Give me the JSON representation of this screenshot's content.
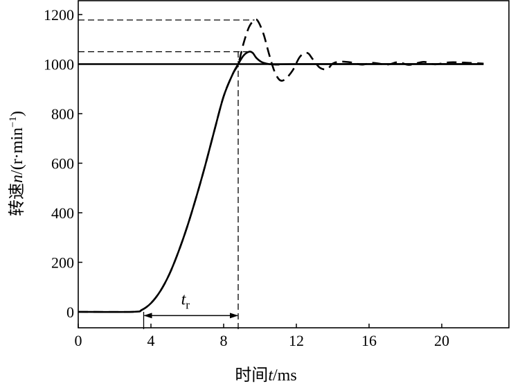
{
  "chart_data": {
    "type": "line",
    "title": "",
    "xlabel": {
      "prefix": "时间",
      "var": "t",
      "suffix": "/ms"
    },
    "ylabel": {
      "prefix": "转速",
      "var": "n",
      "mid": "/(r·min",
      "sup": "−1",
      "suffix": ")"
    },
    "xlim": [
      0,
      22.3
    ],
    "ylim": [
      -70,
      1230
    ],
    "xticks": [
      0,
      4,
      8,
      12,
      16,
      20
    ],
    "yticks": [
      0,
      200,
      400,
      600,
      800,
      1000,
      1200
    ],
    "grid": false,
    "legend": "none",
    "series": [
      {
        "style": "solid",
        "x": [
          0,
          3,
          3.5,
          4,
          4.5,
          5,
          5.5,
          6,
          6.5,
          7,
          7.5,
          8,
          8.5,
          8.8,
          9.1,
          9.4,
          9.6,
          9.8,
          10.1,
          10.5,
          11,
          12,
          22.3
        ],
        "y": [
          0,
          0,
          8,
          35,
          82,
          150,
          240,
          345,
          465,
          595,
          735,
          870,
          960,
          1000,
          1035,
          1050,
          1045,
          1025,
          1008,
          1000,
          998,
          1000,
          1000
        ]
      },
      {
        "style": "dashed",
        "x": [
          0,
          3,
          3.5,
          4,
          4.5,
          5,
          5.5,
          6,
          6.5,
          7,
          7.5,
          8,
          8.5,
          8.8,
          9.1,
          9.4,
          9.7,
          9.9,
          10.2,
          10.5,
          10.8,
          11.1,
          11.4,
          11.8,
          12.2,
          12.6,
          12.9,
          13.3,
          13.7,
          14,
          14.4,
          15,
          15.6,
          16.2,
          17,
          17.6,
          18.2,
          19,
          19.6,
          20.4,
          21.2,
          22.3
        ],
        "y": [
          0,
          0,
          8,
          35,
          82,
          150,
          240,
          345,
          465,
          595,
          735,
          870,
          960,
          1000,
          1085,
          1150,
          1178,
          1172,
          1120,
          1040,
          970,
          935,
          940,
          975,
          1030,
          1045,
          1020,
          985,
          980,
          1002,
          1010,
          1007,
          998,
          1005,
          998,
          1008,
          997,
          1009,
          999,
          1007,
          1006,
          1002
        ]
      }
    ],
    "reference_lines": [
      {
        "axis": "y",
        "value": 1000,
        "style": "solid",
        "x_range": [
          0,
          22.3
        ]
      },
      {
        "axis": "y",
        "value": 1050,
        "style": "dashed",
        "x_range": [
          0,
          9.4
        ]
      },
      {
        "axis": "y",
        "value": 1178,
        "style": "dashed",
        "x_range": [
          0,
          9.7
        ]
      },
      {
        "axis": "x",
        "value": 8.8,
        "style": "dashed",
        "y_range": [
          -70,
          1050
        ]
      },
      {
        "axis": "x",
        "value": 3.6,
        "style": "solid",
        "y_range": [
          -70,
          0
        ]
      }
    ],
    "annotations": [
      {
        "type": "double-arrow",
        "x_range": [
          3.6,
          8.8
        ],
        "y": -15,
        "label_var": "t",
        "label_sub": "r"
      }
    ]
  }
}
